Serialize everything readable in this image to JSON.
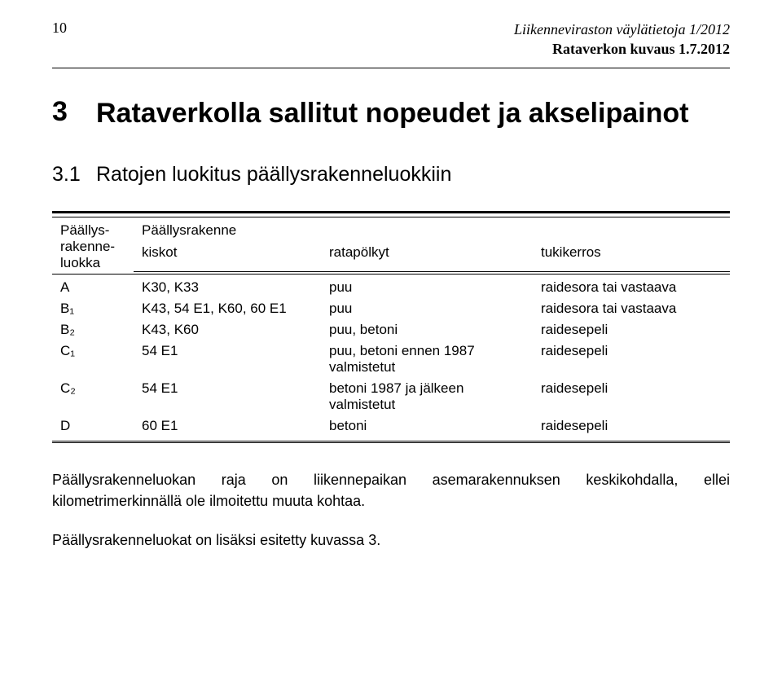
{
  "header": {
    "page_number": "10",
    "line1": "Liikenneviraston väylätietoja 1/2012",
    "line2": "Rataverkon kuvaus 1.7.2012"
  },
  "section": {
    "number": "3",
    "title": "Rataverkolla sallitut nopeudet ja akselipainot"
  },
  "subsection": {
    "number": "3.1",
    "title": "Ratojen luokitus päällysrakenneluokkiin"
  },
  "table": {
    "heading_col0_line1": "Päällys-",
    "heading_col0_line2": "rakenne-",
    "heading_col0_line3": "luokka",
    "heading_span": "Päällysrakenne",
    "heading_col1": "kiskot",
    "heading_col2": "ratapölkyt",
    "heading_col3": "tukikerros",
    "rows": [
      {
        "c0": "A",
        "c1": "K30, K33",
        "c2": "puu",
        "c3": "raidesora tai vastaava"
      },
      {
        "c0": "B₁",
        "c1": "K43, 54 E1, K60, 60 E1",
        "c2": "puu",
        "c3": "raidesora tai vastaava"
      },
      {
        "c0": "B₂",
        "c1": "K43, K60",
        "c2": "puu, betoni",
        "c3": "raidesepeli"
      },
      {
        "c0": "C₁",
        "c1": "54 E1",
        "c2": "puu, betoni ennen 1987 valmistetut",
        "c3": "raidesepeli"
      },
      {
        "c0": "C₂",
        "c1": "54 E1",
        "c2": "betoni 1987 ja jälkeen valmistetut",
        "c3": "raidesepeli"
      },
      {
        "c0": "D",
        "c1": "60 E1",
        "c2": "betoni",
        "c3": "raidesepeli"
      }
    ]
  },
  "paragraphs": {
    "p1": "Päällysrakenneluokan raja on liikennepaikan asemarakennuksen keskikohdalla, ellei kilometrimerkinnällä ole ilmoitettu muuta kohtaa.",
    "p2": "Päällysrakenneluokat on lisäksi esitetty kuvassa 3."
  },
  "style": {
    "background": "#ffffff",
    "text_color": "#000000",
    "rule_color": "#000000"
  }
}
